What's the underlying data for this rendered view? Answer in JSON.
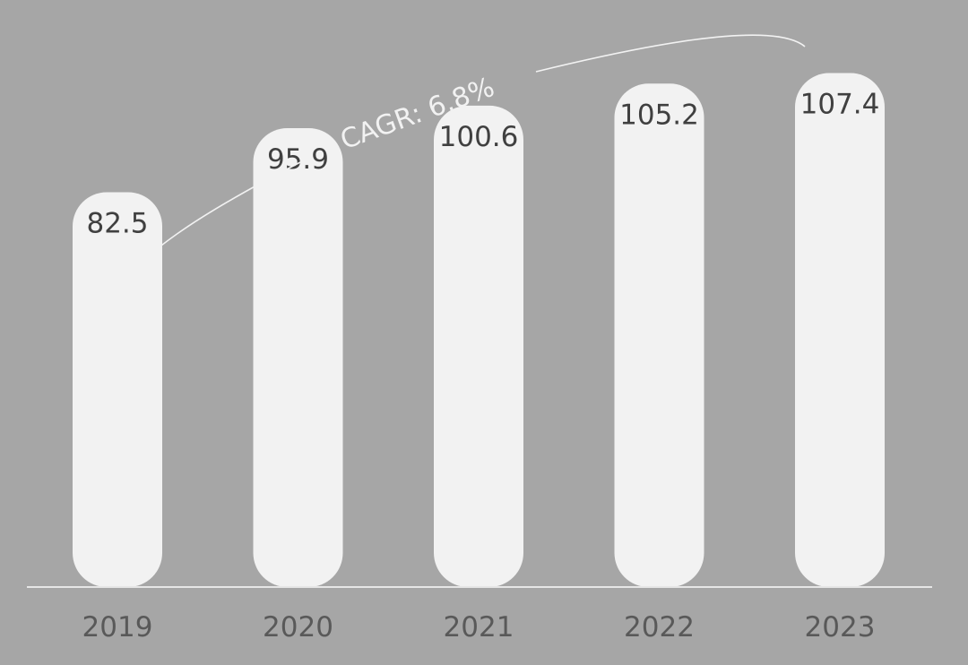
{
  "colors": {
    "background": "#a6a6a6",
    "bar": "#f2f2f2",
    "bar_label": "#404040",
    "tick_label": "#595959",
    "axis": "#e6e6e6",
    "annotation": "#f2f2f2"
  },
  "chart_data": {
    "type": "bar",
    "title": "",
    "xlabel": "",
    "ylabel": "",
    "categories": [
      "2019",
      "2020",
      "2021",
      "2022",
      "2023"
    ],
    "values": [
      82.5,
      95.9,
      100.6,
      105.2,
      107.4
    ],
    "value_labels": [
      "82.5",
      "95.9",
      "100.6",
      "105.2",
      "107.4"
    ],
    "ylim": [
      0,
      112
    ],
    "grid": false,
    "legend": "none",
    "annotations": {
      "cagr": "CAGR: 6.8%"
    }
  }
}
